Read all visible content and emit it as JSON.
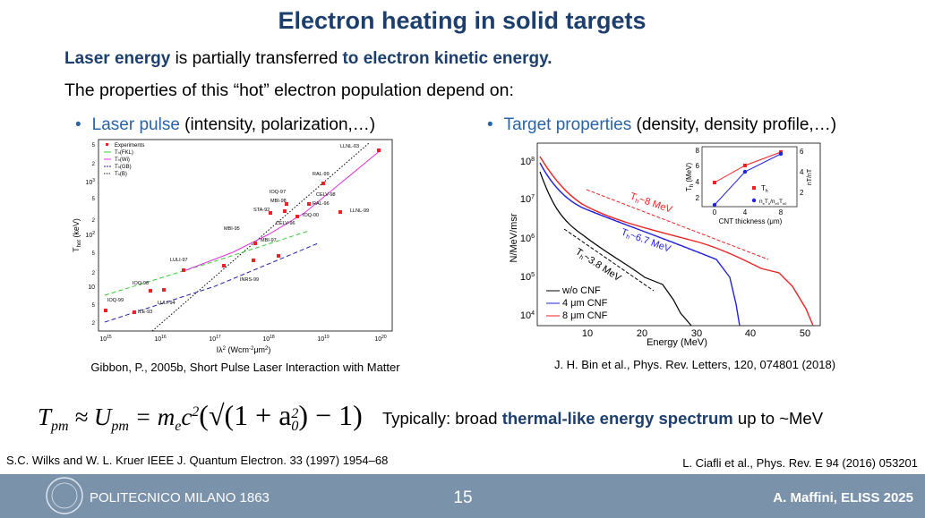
{
  "header": {
    "title": "Electron heating in solid targets"
  },
  "intro": {
    "line1": {
      "a": "Laser energy",
      "b": " is partially transferred ",
      "c": "to electron kinetic energy."
    },
    "line2": "The properties of this “hot” electron population depend on:"
  },
  "bullets": [
    {
      "mark": "•",
      "key": "Laser pulse",
      "rest": " (intensity, polarization,…)"
    },
    {
      "mark": "•",
      "key": "Target properties",
      "rest": " (density, density profile,…)"
    }
  ],
  "left_figure": {
    "y_label": "T",
    "y_label_sub": "hot",
    "y_label_unit": " (keV)",
    "x_label": "Iλ",
    "x_label_sup": "2",
    "x_label_unit": " (Wcm",
    "x_label_sup2": "-2",
    "x_label_mu": "μm",
    "x_label_sup3": "2",
    "x_label_end": ")",
    "x_ticks": [
      {
        "base": "10",
        "exp": "15"
      },
      {
        "base": "10",
        "exp": "16"
      },
      {
        "base": "10",
        "exp": "17"
      },
      {
        "base": "10",
        "exp": "18"
      },
      {
        "base": "10",
        "exp": "19"
      },
      {
        "base": "10",
        "exp": "20"
      }
    ],
    "y_ticks": [
      {
        "base": "10",
        "exp": "3"
      },
      {
        "base": "10",
        "exp": "2"
      },
      {
        "base": "10",
        "exp": ""
      }
    ],
    "y_minor": [
      "5",
      "2",
      "5",
      "2",
      "5",
      "2",
      "5",
      "2"
    ],
    "legend": [
      "Experiments",
      "T",
      "h",
      "(FKL)",
      "T",
      "h",
      "(Wi)",
      "T",
      "h",
      "(GB)",
      "T",
      "h",
      "(B)"
    ],
    "labels": [
      "LLNL-03",
      "RAL-99",
      "CELV-98",
      "RAL-96",
      "LLNL-99",
      "IOQ-97",
      "MBI-98",
      "STA-92",
      "MBI-95",
      "CELV-96",
      "IOQ-00",
      "MBI-97",
      "LULI-97",
      "IOQ-98",
      "IOQ-99",
      "LULI-94",
      "ILE-93",
      "INRS-99"
    ]
  },
  "left_caption": "Gibbon, P., 2005b, Short Pulse Laser Interaction with Matter",
  "right_figure": {
    "y_label": "N/MeV/msr",
    "x_label": "Energy (MeV)",
    "x_ticks": [
      "10",
      "20",
      "30",
      "40",
      "50"
    ],
    "y_ticks": [
      {
        "base": "10",
        "exp": "8"
      },
      {
        "base": "10",
        "exp": "7"
      },
      {
        "base": "10",
        "exp": "6"
      },
      {
        "base": "10",
        "exp": "5"
      },
      {
        "base": "10",
        "exp": "4"
      }
    ],
    "legend": [
      "w/o CNF",
      "4 μm CNF",
      "8 μm CNF"
    ],
    "annotations": [
      {
        "t": "T",
        "s": "h",
        "r": "~8 MeV"
      },
      {
        "t": "T",
        "s": "h",
        "r": "~6.7 MeV"
      },
      {
        "t": "T",
        "s": "h",
        "r": "~3.8 MeV"
      }
    ],
    "inset": {
      "y_label": "T",
      "y_label_sub": "h",
      "y_label_unit": " (MeV)",
      "y2_label": "n",
      "y2_label_rest": "T",
      "y2_label_end": "/n",
      "y2_label_tail": "T",
      "x_label": "CNT thickness (μm)",
      "x_ticks": [
        "0",
        "4",
        "8"
      ],
      "y_ticks": [
        "8",
        "6",
        "4",
        "2"
      ],
      "y2_ticks": [
        "6",
        "4",
        "2"
      ],
      "legend": [
        "T",
        "h",
        "n",
        "e",
        "T",
        "h",
        "/n",
        "e0",
        "T",
        "h0"
      ]
    }
  },
  "right_caption": "J. H. Bin et al., Phys. Rev. Letters, 120, 074801 (2018)",
  "formula": {
    "parts": [
      "T",
      "pm",
      " ≈ U",
      "pm",
      " = m",
      "e",
      "c",
      "2",
      "(√(1 + a",
      "0",
      "2",
      ") − 1)"
    ]
  },
  "typically": {
    "a": "Typically: broad ",
    "b": "thermal-like energy spectrum",
    "c": " up to ~MeV"
  },
  "refs": {
    "left": "S.C. Wilks and W. L. Kruer IEEE J. Quantum Electron. 33 (1997) 1954–68",
    "right": "L. Ciafli et al., Phys. Rev. E 94 (2016) 053201"
  },
  "footer": {
    "institution": "POLITECNICO MILANO 1863",
    "page": "15",
    "author": "A. Maffini, ELISS 2025"
  }
}
